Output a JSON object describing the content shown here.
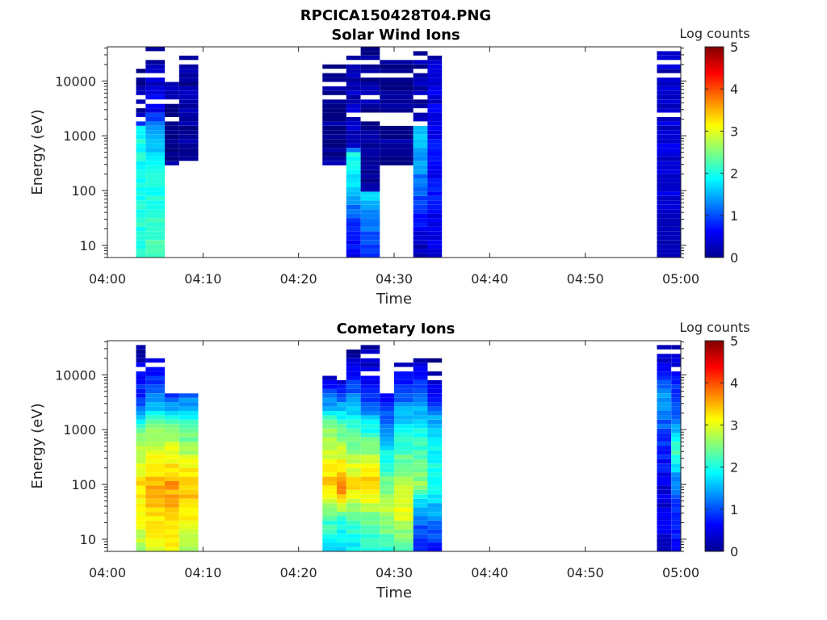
{
  "figure": {
    "filename_title": "RPCICA150428T04.PNG"
  },
  "colors": {
    "colormap": "jet",
    "axis": "#262626",
    "background": "#ffffff"
  },
  "chart_data": [
    {
      "type": "heatmap",
      "title": "Solar Wind Ions",
      "xlabel": "Time",
      "ylabel": "Energy (eV)",
      "x_ticks": [
        "04:00",
        "04:10",
        "04:20",
        "04:30",
        "04:40",
        "04:50",
        "05:00"
      ],
      "x_range": [
        "04:00",
        "05:00"
      ],
      "y_scale": "log",
      "y_range": [
        6,
        42000
      ],
      "y_ticks": [
        10,
        100,
        1000,
        10000
      ],
      "y_tick_labels": [
        "10",
        "100",
        "1000",
        "10000"
      ],
      "colorbar": {
        "label": "Log counts",
        "range": [
          0,
          5
        ],
        "ticks": [
          "0",
          "1",
          "2",
          "3",
          "4",
          "5"
        ]
      },
      "columns": [
        {
          "start": "04:03",
          "end": "04:04",
          "top_eV": 22000,
          "bottom_eV": 6,
          "profile": [
            [
              6,
              2.1
            ],
            [
              100,
              2.0
            ],
            [
              1600,
              1.9
            ],
            [
              1700,
              0.2
            ],
            [
              22000,
              0.1
            ]
          ]
        },
        {
          "start": "04:04",
          "end": "04:06",
          "top_eV": 42000,
          "bottom_eV": 6,
          "profile": [
            [
              6,
              2.2
            ],
            [
              100,
              2.0
            ],
            [
              1000,
              1.6
            ],
            [
              3000,
              0.6
            ],
            [
              42000,
              0.1
            ]
          ]
        },
        {
          "start": "04:06",
          "end": "04:07.5",
          "top_eV": 22000,
          "bottom_eV": 350,
          "profile": [
            [
              350,
              0.1
            ],
            [
              22000,
              0.2
            ]
          ]
        },
        {
          "start": "04:07.5",
          "end": "04:09.5",
          "top_eV": 30000,
          "bottom_eV": 400,
          "profile": [
            [
              400,
              0.1
            ],
            [
              30000,
              0.2
            ]
          ]
        },
        {
          "start": "04:22.5",
          "end": "04:25",
          "top_eV": 22000,
          "bottom_eV": 320,
          "profile": [
            [
              320,
              0.1
            ],
            [
              22000,
              0.1
            ]
          ]
        },
        {
          "start": "04:25",
          "end": "04:26.5",
          "top_eV": 30000,
          "bottom_eV": 6,
          "profile": [
            [
              6,
              0.5
            ],
            [
              40,
              1.1
            ],
            [
              100,
              1.7
            ],
            [
              500,
              1.9
            ],
            [
              600,
              0.4
            ],
            [
              30000,
              0.2
            ]
          ]
        },
        {
          "start": "04:26.5",
          "end": "04:28.5",
          "top_eV": 42000,
          "bottom_eV": 6,
          "profile": [
            [
              6,
              0.7
            ],
            [
              50,
              1.5
            ],
            [
              90,
              1.6
            ],
            [
              100,
              0.2
            ],
            [
              42000,
              0.15
            ]
          ]
        },
        {
          "start": "04:28.5",
          "end": "04:32",
          "top_eV": 30000,
          "bottom_eV": 320,
          "profile": [
            [
              320,
              0.1
            ],
            [
              30000,
              0.1
            ]
          ]
        },
        {
          "start": "04:32",
          "end": "04:33.5",
          "top_eV": 42000,
          "bottom_eV": 6,
          "profile": [
            [
              6,
              0.2
            ],
            [
              60,
              1.0
            ],
            [
              400,
              1.4
            ],
            [
              1400,
              1.6
            ],
            [
              1500,
              0.2
            ],
            [
              42000,
              0.2
            ]
          ]
        },
        {
          "start": "04:33.5",
          "end": "04:35",
          "top_eV": 38000,
          "bottom_eV": 6,
          "profile": [
            [
              6,
              0.5
            ],
            [
              100,
              0.7
            ],
            [
              1000,
              0.6
            ],
            [
              38000,
              0.3
            ]
          ]
        },
        {
          "start": "04:57.5",
          "end": "05:00",
          "top_eV": 38000,
          "bottom_eV": 6,
          "profile": [
            [
              6,
              0.3
            ],
            [
              100,
              0.5
            ],
            [
              1000,
              0.4
            ],
            [
              38000,
              0.3
            ]
          ]
        }
      ]
    },
    {
      "type": "heatmap",
      "title": "Cometary Ions",
      "xlabel": "Time",
      "ylabel": "Energy (eV)",
      "x_ticks": [
        "04:00",
        "04:10",
        "04:20",
        "04:30",
        "04:40",
        "04:50",
        "05:00"
      ],
      "x_range": [
        "04:00",
        "05:00"
      ],
      "y_scale": "log",
      "y_range": [
        6,
        42000
      ],
      "y_ticks": [
        10,
        100,
        1000,
        10000
      ],
      "y_tick_labels": [
        "10",
        "100",
        "1000",
        "10000"
      ],
      "colorbar": {
        "label": "Log counts",
        "range": [
          0,
          5
        ],
        "ticks": [
          "0",
          "1",
          "2",
          "3",
          "4",
          "5"
        ]
      },
      "columns": [
        {
          "start": "04:03",
          "end": "04:04",
          "top_eV": 40000,
          "bottom_eV": 6,
          "profile": [
            [
              6,
              2.7
            ],
            [
              20,
              3.0
            ],
            [
              100,
              3.3
            ],
            [
              1000,
              2.4
            ],
            [
              3000,
              1.0
            ],
            [
              40000,
              0.1
            ]
          ]
        },
        {
          "start": "04:04",
          "end": "04:06",
          "top_eV": 22000,
          "bottom_eV": 6,
          "profile": [
            [
              6,
              3.0
            ],
            [
              100,
              3.5
            ],
            [
              1000,
              2.6
            ],
            [
              3000,
              1.4
            ],
            [
              22000,
              0.3
            ]
          ]
        },
        {
          "start": "04:06",
          "end": "04:07.5",
          "top_eV": 4200,
          "bottom_eV": 6,
          "profile": [
            [
              6,
              3.1
            ],
            [
              100,
              3.6
            ],
            [
              1000,
              2.6
            ],
            [
              4200,
              0.9
            ]
          ]
        },
        {
          "start": "04:07.5",
          "end": "04:09.5",
          "top_eV": 5000,
          "bottom_eV": 6,
          "profile": [
            [
              6,
              2.6
            ],
            [
              30,
              3.3
            ],
            [
              100,
              3.4
            ],
            [
              1000,
              2.3
            ],
            [
              5000,
              1.0
            ]
          ]
        },
        {
          "start": "04:22.5",
          "end": "04:24",
          "top_eV": 9000,
          "bottom_eV": 6,
          "profile": [
            [
              6,
              1.7
            ],
            [
              20,
              2.2
            ],
            [
              100,
              3.4
            ],
            [
              1000,
              2.6
            ],
            [
              3000,
              1.4
            ],
            [
              9000,
              0.3
            ]
          ]
        },
        {
          "start": "04:24",
          "end": "04:25",
          "top_eV": 9500,
          "bottom_eV": 6,
          "profile": [
            [
              6,
              1.7
            ],
            [
              20,
              2.0
            ],
            [
              80,
              3.7
            ],
            [
              1000,
              2.4
            ],
            [
              9500,
              0.3
            ]
          ]
        },
        {
          "start": "04:25",
          "end": "04:26.5",
          "top_eV": 27000,
          "bottom_eV": 6,
          "profile": [
            [
              6,
              1.8
            ],
            [
              20,
              2.1
            ],
            [
              100,
              3.3
            ],
            [
              1000,
              2.2
            ],
            [
              4000,
              1.2
            ],
            [
              27000,
              0.2
            ]
          ]
        },
        {
          "start": "04:26.5",
          "end": "04:28.5",
          "top_eV": 38000,
          "bottom_eV": 6,
          "profile": [
            [
              6,
              1.9
            ],
            [
              30,
              2.6
            ],
            [
              100,
              3.5
            ],
            [
              1000,
              2.0
            ],
            [
              4000,
              0.8
            ],
            [
              38000,
              0.1
            ]
          ]
        },
        {
          "start": "04:28.5",
          "end": "04:30",
          "top_eV": 5000,
          "bottom_eV": 6,
          "profile": [
            [
              6,
              2.0
            ],
            [
              30,
              2.8
            ],
            [
              100,
              2.5
            ],
            [
              1000,
              1.4
            ],
            [
              5000,
              0.5
            ]
          ]
        },
        {
          "start": "04:30",
          "end": "04:32",
          "top_eV": 18000,
          "bottom_eV": 6,
          "profile": [
            [
              6,
              2.1
            ],
            [
              30,
              3.0
            ],
            [
              100,
              2.8
            ],
            [
              1000,
              1.9
            ],
            [
              5000,
              1.0
            ],
            [
              18000,
              0.2
            ]
          ]
        },
        {
          "start": "04:32",
          "end": "04:33.5",
          "top_eV": 22000,
          "bottom_eV": 6,
          "profile": [
            [
              6,
              0.6
            ],
            [
              40,
              1.5
            ],
            [
              100,
              2.6
            ],
            [
              1000,
              2.0
            ],
            [
              4000,
              1.1
            ],
            [
              22000,
              0.2
            ]
          ]
        },
        {
          "start": "04:33.5",
          "end": "04:35",
          "top_eV": 22000,
          "bottom_eV": 6,
          "profile": [
            [
              6,
              0.7
            ],
            [
              100,
              2.0
            ],
            [
              1000,
              1.8
            ],
            [
              4000,
              0.7
            ],
            [
              22000,
              0.1
            ]
          ]
        },
        {
          "start": "04:57.5",
          "end": "04:59",
          "top_eV": 35000,
          "bottom_eV": 6,
          "profile": [
            [
              6,
              0.4
            ],
            [
              100,
              0.5
            ],
            [
              1000,
              1.0
            ],
            [
              3000,
              1.5
            ],
            [
              35000,
              0.1
            ]
          ]
        },
        {
          "start": "04:59",
          "end": "05:00",
          "top_eV": 38000,
          "bottom_eV": 6,
          "profile": [
            [
              6,
              0.5
            ],
            [
              100,
              1.2
            ],
            [
              500,
              2.3
            ],
            [
              1000,
              1.4
            ],
            [
              38000,
              0.2
            ]
          ]
        }
      ]
    }
  ]
}
